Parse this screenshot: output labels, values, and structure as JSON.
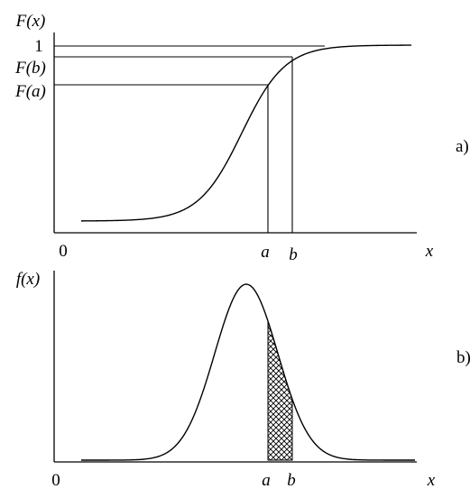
{
  "panel_a": {
    "y_label": "F(x)",
    "one_label": "1",
    "fb_label": "F(b)",
    "fa_label": "F(a)",
    "origin_label": "0",
    "a_label": "a",
    "b_label": "b",
    "x_label": "x",
    "tag": "a)"
  },
  "panel_b": {
    "y_label": "f(x)",
    "origin_label": "0",
    "a_label": "a",
    "b_label": "b",
    "x_label": "x",
    "tag": "b)"
  }
}
